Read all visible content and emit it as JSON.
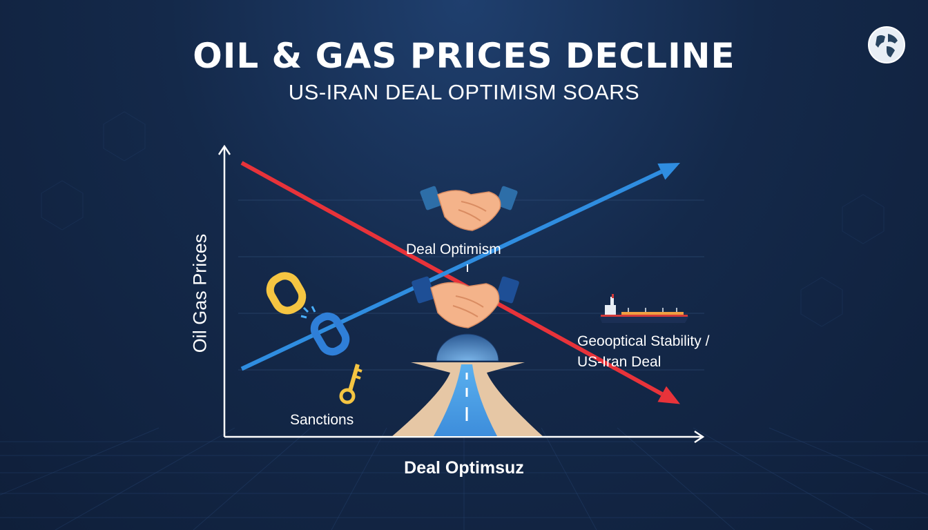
{
  "title": "OIL & GAS PRICES DECLINE",
  "subtitle": "US-IRAN DEAL OPTIMISM SOARS",
  "chart_data": {
    "type": "line",
    "ylabel": "Oil Gas Prices",
    "xlabel": "Deal Optimsuz",
    "grid": true,
    "series": [
      {
        "name": "",
        "color": "#e8333a",
        "x": [
          0,
          100
        ],
        "values": [
          100,
          4
        ]
      },
      {
        "name": "",
        "color": "#2f8de0",
        "x": [
          0,
          100
        ],
        "values": [
          18,
          100
        ]
      }
    ],
    "xlim": [
      0,
      100
    ],
    "ylim": [
      0,
      100
    ],
    "annotations": {
      "deal_optimism": "Deal Optimism",
      "sanctions": "Sanctions",
      "stability_line1": "Geooptical Stability /",
      "stability_line2": "US-Iran Deal"
    }
  },
  "icons": [
    "handshake-icon",
    "broken-chain-icon",
    "key-icon",
    "road-icon",
    "tanker-ship-icon",
    "globe-icon"
  ]
}
